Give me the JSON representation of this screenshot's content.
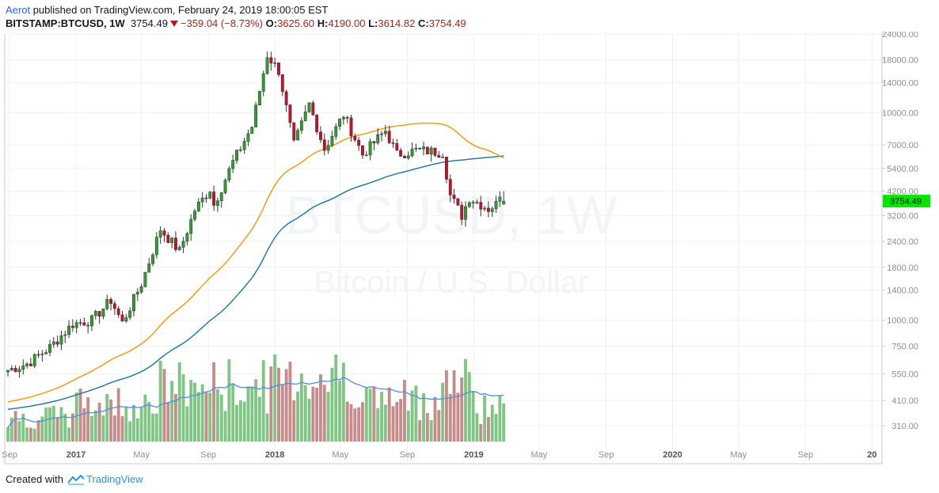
{
  "header": {
    "author": "Aerot",
    "published_text": "published on TradingView.com, February 24, 2019 18:00:05 EST",
    "symbol": "BITSTAMP:BTCUSD, 1W",
    "last": "3754.49",
    "change": "−359.04 (−8.73%)",
    "o_label": "O:",
    "o_value": "3625.60",
    "h_label": "H:",
    "h_value": "4190.00",
    "l_label": "L:",
    "l_value": "3614.82",
    "c_label": "C:",
    "c_value": "3754.49"
  },
  "watermark": {
    "line1": "BTCUSD, 1W",
    "line2": "Bitcoin / U.S. Dollar"
  },
  "footer": {
    "created_with": "Created with",
    "brand": "TradingView"
  },
  "colors": {
    "up": "#2e9e2e",
    "down": "#c8102e",
    "ma_fast": "#f39c12",
    "ma_slow": "#2a7aa8",
    "vol_up": "#7fc583",
    "vol_down": "#c68b8b",
    "vol_ma": "#4f8fe0",
    "price_tag": "#00e600"
  },
  "chart_data": {
    "type": "candlestick",
    "price_scale": "log",
    "y_ticks": [
      "24000.00",
      "18000.00",
      "14000.00",
      "10000.00",
      "7000.00",
      "5400.00",
      "4200.00",
      "3200.00",
      "2400.00",
      "1800.00",
      "1400.00",
      "1000.00",
      "750.00",
      "550.00",
      "410.00",
      "310.00"
    ],
    "x_ticks": [
      "Sep",
      "2017",
      "May",
      "Sep",
      "2018",
      "May",
      "Sep",
      "2019",
      "May",
      "Sep",
      "2020",
      "May",
      "Sep",
      "20"
    ],
    "last_price_label": "3754.49",
    "anchor_closes": [
      [
        "2016-08-29",
        575
      ],
      [
        "2016-10-03",
        615
      ],
      [
        "2016-11-14",
        740
      ],
      [
        "2016-12-26",
        960
      ],
      [
        "2017-01-30",
        1000
      ],
      [
        "2017-03-06",
        1250
      ],
      [
        "2017-03-27",
        970
      ],
      [
        "2017-05-01",
        1500
      ],
      [
        "2017-06-05",
        2750
      ],
      [
        "2017-07-10",
        2150
      ],
      [
        "2017-08-07",
        3400
      ],
      [
        "2017-09-04",
        4300
      ],
      [
        "2017-09-11",
        3600
      ],
      [
        "2017-10-16",
        5800
      ],
      [
        "2017-11-20",
        8600
      ],
      [
        "2017-12-18",
        19000
      ],
      [
        "2018-01-08",
        16000
      ],
      [
        "2018-02-05",
        7000
      ],
      [
        "2018-03-05",
        11000
      ],
      [
        "2018-04-02",
        6700
      ],
      [
        "2018-05-07",
        9800
      ],
      [
        "2018-06-11",
        6300
      ],
      [
        "2018-07-23",
        8200
      ],
      [
        "2018-08-13",
        6300
      ],
      [
        "2018-09-17",
        6600
      ],
      [
        "2018-11-05",
        6450
      ],
      [
        "2018-11-19",
        4000
      ],
      [
        "2018-12-10",
        3200
      ],
      [
        "2018-12-24",
        3900
      ],
      [
        "2019-01-28",
        3450
      ],
      [
        "2019-02-11",
        3620
      ],
      [
        "2019-02-18",
        4114
      ],
      [
        "2019-02-25",
        3754.49
      ]
    ]
  }
}
